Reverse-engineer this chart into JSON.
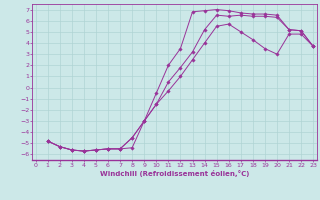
{
  "xlabel": "Windchill (Refroidissement éolien,°C)",
  "background_color": "#cce8e8",
  "grid_color": "#b0d4d4",
  "line_color": "#993399",
  "marker_color": "#993399",
  "xlim": [
    -0.3,
    23.3
  ],
  "ylim": [
    -6.5,
    7.5
  ],
  "xticks": [
    0,
    1,
    2,
    3,
    4,
    5,
    6,
    7,
    8,
    9,
    10,
    11,
    12,
    13,
    14,
    15,
    16,
    17,
    18,
    19,
    20,
    21,
    22,
    23
  ],
  "yticks": [
    -6,
    -5,
    -4,
    -3,
    -2,
    -1,
    0,
    1,
    2,
    3,
    4,
    5,
    6,
    7
  ],
  "line1_x": [
    1,
    2,
    3,
    4,
    5,
    6,
    7,
    8,
    9,
    10,
    11,
    12,
    13,
    14,
    15,
    16,
    17,
    18,
    19,
    20,
    21,
    22,
    23
  ],
  "line1_y": [
    -4.8,
    -5.3,
    -5.6,
    -5.7,
    -5.6,
    -5.5,
    -5.5,
    -5.4,
    -3.0,
    -0.5,
    2.0,
    3.5,
    6.8,
    6.9,
    7.0,
    6.9,
    6.7,
    6.6,
    6.6,
    6.5,
    5.2,
    5.1,
    3.7
  ],
  "line2_x": [
    1,
    2,
    3,
    4,
    5,
    6,
    7,
    8,
    9,
    10,
    11,
    12,
    13,
    14,
    15,
    16,
    17,
    18,
    19,
    20,
    21,
    22,
    23
  ],
  "line2_y": [
    -4.8,
    -5.3,
    -5.6,
    -5.7,
    -5.6,
    -5.5,
    -5.5,
    -4.5,
    -3.0,
    -1.5,
    0.5,
    1.8,
    3.2,
    5.2,
    6.5,
    6.4,
    6.5,
    6.4,
    6.4,
    6.3,
    5.2,
    5.1,
    3.7
  ],
  "line3_x": [
    1,
    2,
    3,
    4,
    5,
    6,
    7,
    8,
    9,
    10,
    11,
    12,
    13,
    14,
    15,
    16,
    17,
    18,
    19,
    20,
    21,
    22,
    23
  ],
  "line3_y": [
    -4.8,
    -5.3,
    -5.6,
    -5.7,
    -5.6,
    -5.5,
    -5.5,
    -4.5,
    -3.0,
    -1.5,
    -0.3,
    1.0,
    2.5,
    4.0,
    5.5,
    5.7,
    5.0,
    4.3,
    3.5,
    3.0,
    4.8,
    4.8,
    3.7
  ]
}
